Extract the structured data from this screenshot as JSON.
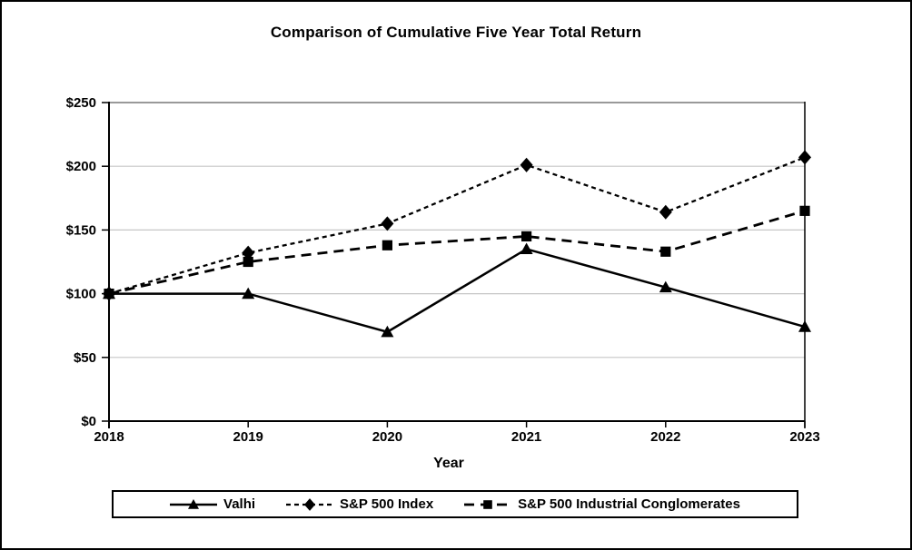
{
  "chart_data": {
    "type": "line",
    "title": "Comparison of Cumulative Five Year Total Return",
    "xlabel": "Year",
    "ylabel": "",
    "categories": [
      "2018",
      "2019",
      "2020",
      "2021",
      "2022",
      "2023"
    ],
    "ylim": [
      0,
      250
    ],
    "y_ticks": [
      {
        "value": 0,
        "label": "$0"
      },
      {
        "value": 50,
        "label": "$50"
      },
      {
        "value": 100,
        "label": "$100"
      },
      {
        "value": 150,
        "label": "$150"
      },
      {
        "value": 200,
        "label": "$200"
      },
      {
        "value": 250,
        "label": "$250"
      }
    ],
    "grid": "horizontal",
    "legend_position": "bottom",
    "colors": {
      "series": "#000000",
      "gridline": "#C6C6C6",
      "top_gridline": "#999999",
      "axis": "#000000"
    },
    "series": [
      {
        "name": "Valhi",
        "marker": "triangle",
        "line": "solid",
        "dash": "",
        "width": 2.5,
        "color": "#000000",
        "values": [
          100,
          100,
          70,
          135,
          105,
          74
        ]
      },
      {
        "name": "S&P 500 Index",
        "marker": "diamond",
        "line": "dashed-fine",
        "dash": "5,4",
        "width": 2.3,
        "color": "#000000",
        "values": [
          100,
          132,
          155,
          201,
          164,
          207
        ]
      },
      {
        "name": "S&P 500 Industrial Conglomerates",
        "marker": "square",
        "line": "dashed",
        "dash": "11,7",
        "width": 2.8,
        "color": "#000000",
        "values": [
          100,
          125,
          138,
          145,
          133,
          165
        ]
      }
    ]
  }
}
